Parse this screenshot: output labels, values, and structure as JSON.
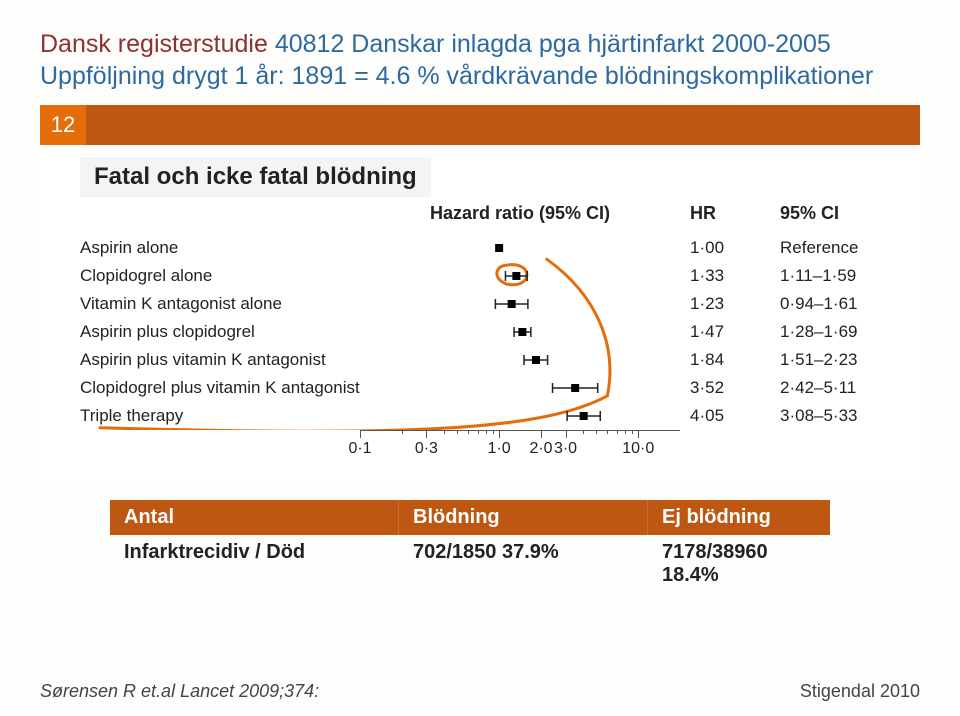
{
  "title": {
    "segments": [
      {
        "text": "Dansk registerstudie ",
        "color": "#8d3230"
      },
      {
        "text": "40812 Danskar inlagda pga hjärtinfarkt 2000-2005",
        "color": "#2e6aa0"
      }
    ],
    "line2": "Uppföljning drygt 1 år: 1891 = 4.6 % vårdkrävande blödningskomplikationer"
  },
  "slide_number": "12",
  "subtitle": "Fatal och icke fatal blödning",
  "forest": {
    "headers": {
      "mid": "Hazard ratio (95% CI)",
      "hr": "HR",
      "ci": "95% CI"
    },
    "scale": {
      "min_log": -1,
      "max_log": 1.3
    },
    "ticks_major": [
      0.1,
      0.3,
      1.0,
      2.0,
      3.0,
      10.0
    ],
    "ticks_minor": [
      0.2,
      0.4,
      0.5,
      0.6,
      0.7,
      0.8,
      0.9,
      4.0,
      5.0,
      6.0,
      7.0,
      8.0,
      9.0
    ],
    "rows": [
      {
        "label": "Aspirin alone",
        "hr": "1·00",
        "ci": "Reference",
        "point": 1.0,
        "lo": null,
        "hi": null
      },
      {
        "label": "Clopidogrel alone",
        "hr": "1·33",
        "ci": "1·11–1·59",
        "point": 1.33,
        "lo": 1.11,
        "hi": 1.59
      },
      {
        "label": "Vitamin K antagonist alone",
        "hr": "1·23",
        "ci": "0·94–1·61",
        "point": 1.23,
        "lo": 0.94,
        "hi": 1.61
      },
      {
        "label": "Aspirin plus clopidogrel",
        "hr": "1·47",
        "ci": "1·28–1·69",
        "point": 1.47,
        "lo": 1.28,
        "hi": 1.69
      },
      {
        "label": "Aspirin plus vitamin K antagonist",
        "hr": "1·84",
        "ci": "1·51–2·23",
        "point": 1.84,
        "lo": 1.51,
        "hi": 2.23
      },
      {
        "label": "Clopidogrel plus vitamin K antagonist",
        "hr": "3·52",
        "ci": "2·42–5·11",
        "point": 3.52,
        "lo": 2.42,
        "hi": 5.11
      },
      {
        "label": "Triple therapy",
        "hr": "4·05",
        "ci": "3·08–5·33",
        "point": 4.05,
        "lo": 3.08,
        "hi": 5.33
      }
    ],
    "annotation_color": "#e46c0a",
    "annotation_stroke": 3,
    "marker_color": "#000000",
    "line_color": "#222222"
  },
  "summary_table": {
    "headers": [
      "Antal",
      "Blödning",
      "Ej blödning"
    ],
    "row": [
      "Infarktrecidiv / Död",
      "702/1850  37.9%",
      "7178/38960 18.4%"
    ]
  },
  "footer": {
    "reference": "Sørensen R et.al Lancet 2009;374:",
    "author": "Stigendal 2010"
  },
  "colors": {
    "bg": "#fdfdfb",
    "orange_dark": "#be5712",
    "orange_light": "#e46c0a",
    "title_red": "#8d3230",
    "title_blue": "#2e6aa0"
  }
}
